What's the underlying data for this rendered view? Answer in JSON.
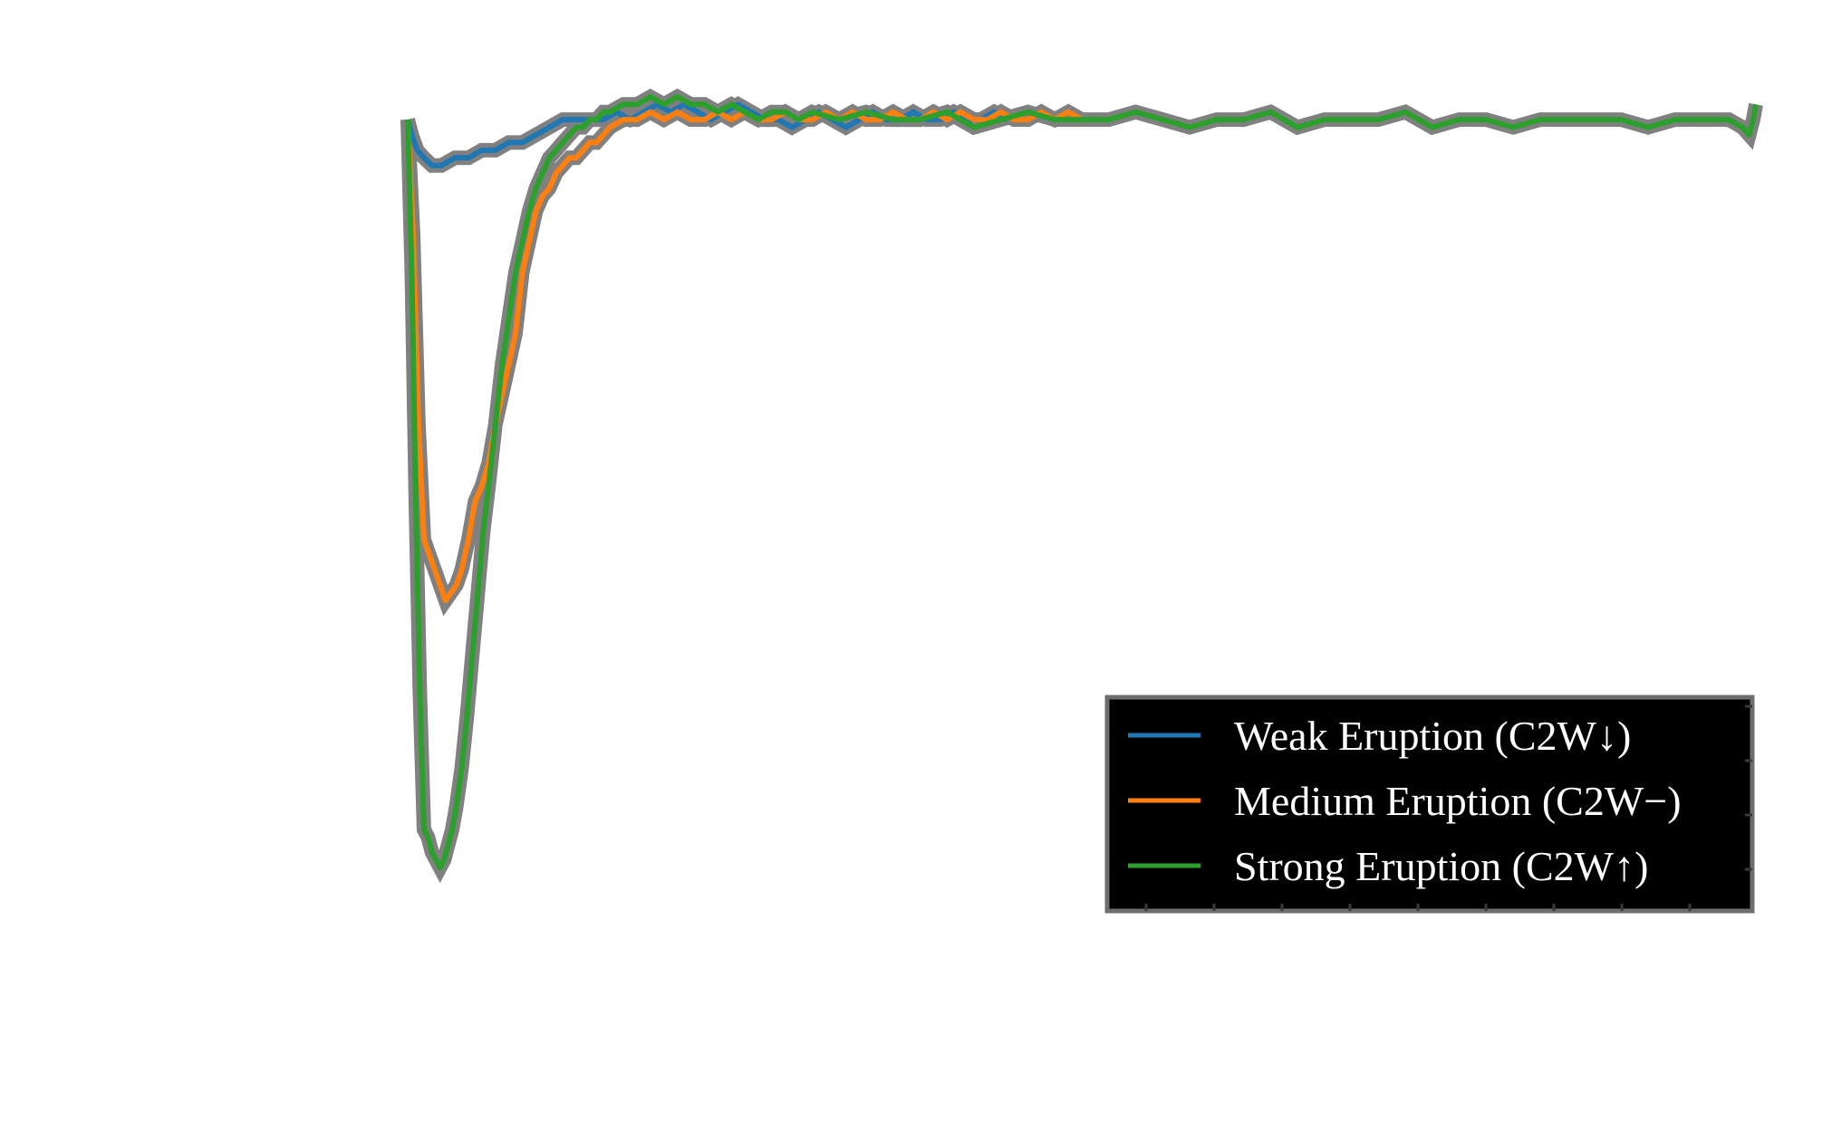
{
  "chart_data": {
    "type": "line",
    "xlim": [
      0,
      1000
    ],
    "ylim": [
      0,
      1.05
    ],
    "grid": false,
    "legend": {
      "placement": "lower-right",
      "background": "#000000",
      "border": "#6e6e6e"
    },
    "series": [
      {
        "name": "Weak Eruption (C2W↓)",
        "color": "#1f77b4",
        "x": [
          0,
          3,
          7,
          12,
          18,
          25,
          35,
          45,
          55,
          65,
          75,
          85,
          95,
          105,
          115,
          125,
          135,
          145,
          155,
          165,
          175,
          185,
          195,
          205,
          215,
          225,
          235,
          245,
          255,
          265,
          275,
          285,
          295,
          305,
          315,
          325,
          335,
          345,
          355,
          365,
          375,
          385,
          395,
          405,
          415,
          425,
          435,
          445
        ],
        "y": [
          1.0,
          0.98,
          0.96,
          0.95,
          0.94,
          0.94,
          0.95,
          0.95,
          0.96,
          0.96,
          0.97,
          0.97,
          0.98,
          0.99,
          1.0,
          1.0,
          1.0,
          1.0,
          1.01,
          1.0,
          1.01,
          1.02,
          1.01,
          1.02,
          1.01,
          1.0,
          1.01,
          1.02,
          1.01,
          1.0,
          1.0,
          0.99,
          1.0,
          1.01,
          1.0,
          0.99,
          1.0,
          1.01,
          1.0,
          1.0,
          1.01,
          1.0,
          1.0,
          1.01,
          1.0,
          1.0,
          1.01,
          1.0
        ]
      },
      {
        "name": "Medium Eruption (C2W−)",
        "color": "#ff7f0e",
        "x": [
          0,
          4,
          8,
          12,
          16,
          20,
          24,
          28,
          32,
          36,
          40,
          45,
          50,
          55,
          60,
          65,
          70,
          75,
          80,
          85,
          90,
          95,
          100,
          105,
          110,
          115,
          120,
          125,
          130,
          135,
          140,
          145,
          150,
          160,
          170,
          180,
          190,
          200,
          210,
          220,
          230,
          240,
          250,
          260,
          270,
          280,
          290,
          300,
          310,
          320,
          330,
          340,
          350,
          360,
          370,
          380,
          390,
          400,
          410,
          420,
          430,
          440,
          450,
          460,
          470,
          480,
          490,
          500
        ],
        "y": [
          1.0,
          0.85,
          0.6,
          0.45,
          0.43,
          0.41,
          0.39,
          0.37,
          0.38,
          0.39,
          0.41,
          0.45,
          0.5,
          0.52,
          0.55,
          0.6,
          0.64,
          0.68,
          0.72,
          0.8,
          0.84,
          0.88,
          0.9,
          0.91,
          0.93,
          0.94,
          0.95,
          0.95,
          0.96,
          0.97,
          0.97,
          0.98,
          0.99,
          1.0,
          1.0,
          1.01,
          1.0,
          1.01,
          1.0,
          1.0,
          1.01,
          1.0,
          1.01,
          1.0,
          1.0,
          1.01,
          1.0,
          1.0,
          1.01,
          1.0,
          1.01,
          1.0,
          1.0,
          1.01,
          1.0,
          1.0,
          1.01,
          1.0,
          1.01,
          1.0,
          1.0,
          1.01,
          1.0,
          1.0,
          1.01,
          1.0,
          1.01,
          1.0
        ]
      },
      {
        "name": "Strong Eruption (C2W↑)",
        "color": "#2ca02c",
        "x": [
          0,
          3,
          6,
          9,
          12,
          15,
          18,
          21,
          24,
          27,
          30,
          33,
          36,
          40,
          44,
          48,
          52,
          56,
          60,
          65,
          70,
          75,
          80,
          85,
          90,
          95,
          100,
          105,
          110,
          115,
          120,
          125,
          130,
          135,
          140,
          145,
          150,
          160,
          170,
          180,
          190,
          200,
          210,
          220,
          230,
          240,
          250,
          260,
          270,
          280,
          290,
          300,
          320,
          340,
          360,
          380,
          400,
          420,
          440,
          460,
          480,
          500,
          520,
          540,
          560,
          580,
          600,
          620,
          640,
          660,
          680,
          700,
          720,
          740,
          760,
          780,
          800,
          820,
          840,
          860,
          880,
          900,
          920,
          940,
          960,
          980,
          990,
          995,
          998,
          1000
        ],
        "y": [
          1.0,
          0.8,
          0.5,
          0.25,
          0.07,
          0.06,
          0.04,
          0.03,
          0.02,
          0.03,
          0.05,
          0.07,
          0.1,
          0.15,
          0.22,
          0.3,
          0.38,
          0.46,
          0.52,
          0.6,
          0.68,
          0.74,
          0.8,
          0.84,
          0.88,
          0.91,
          0.93,
          0.95,
          0.96,
          0.97,
          0.98,
          0.99,
          0.99,
          1.0,
          1.0,
          1.01,
          1.01,
          1.02,
          1.02,
          1.03,
          1.02,
          1.03,
          1.02,
          1.02,
          1.01,
          1.02,
          1.01,
          1.0,
          1.01,
          1.01,
          1.0,
          1.01,
          1.0,
          1.01,
          1.0,
          1.0,
          1.01,
          0.99,
          1.0,
          1.01,
          1.0,
          1.0,
          1.0,
          1.01,
          1.0,
          0.99,
          1.0,
          1.0,
          1.01,
          0.99,
          1.0,
          1.0,
          1.0,
          1.01,
          0.99,
          1.0,
          1.0,
          0.99,
          1.0,
          1.0,
          1.0,
          1.0,
          0.99,
          1.0,
          1.0,
          1.0,
          0.99,
          0.98,
          1.0,
          1.02
        ]
      }
    ]
  }
}
